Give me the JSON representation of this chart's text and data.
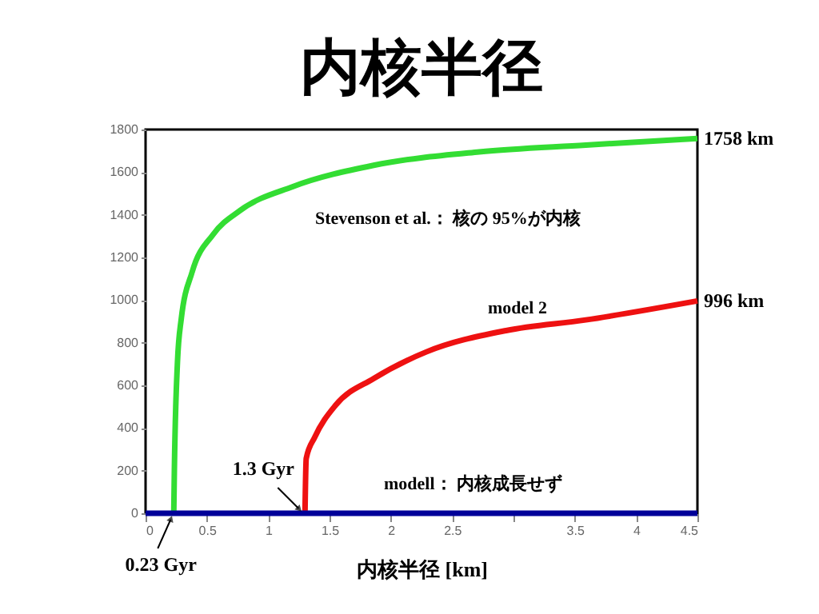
{
  "chart_data": {
    "type": "line",
    "title": "内核半径",
    "xlabel": "内核半径 [km]",
    "xlim": [
      0,
      4.5
    ],
    "ylim": [
      0,
      1800
    ],
    "xticks": [
      0,
      0.5,
      1,
      1.5,
      2,
      2.5,
      {
        "value": 3,
        "label": null
      },
      3.5,
      4,
      4.5
    ],
    "yticks": [
      0,
      200,
      400,
      600,
      800,
      1000,
      1200,
      1400,
      1600,
      1800
    ],
    "grid": false,
    "marker": "none",
    "line_style": "solid",
    "series": [
      {
        "color": "#33dd33",
        "x": [
          0.23,
          0.235,
          0.26,
          0.29,
          0.38,
          0.55,
          0.77,
          1.2,
          1.86,
          2.72,
          3.59,
          4.5
        ],
        "values": [
          0,
          207,
          707,
          907,
          1132,
          1307,
          1420,
          1532,
          1632,
          1695,
          1727,
          1758
        ]
      },
      {
        "color": "#ee1111",
        "x": [
          1.3,
          1.31,
          1.38,
          1.55,
          1.86,
          2.29,
          2.94,
          3.59,
          4.5
        ],
        "values": [
          0,
          257,
          357,
          507,
          632,
          757,
          857,
          907,
          996
        ]
      },
      {
        "color": "#000099",
        "x": [
          0,
          4.5
        ],
        "values": [
          0,
          0
        ]
      }
    ],
    "annotations": [
      {
        "text": "1758 km",
        "x": 4.5,
        "y": 1758
      },
      {
        "text": "996 km",
        "x": 4.5,
        "y": 996
      },
      "Stevenson et al.： 核の 95%が内核",
      "model 2",
      "modell： 内核成長せず",
      {
        "text": "1.3 Gyr",
        "x": 1.3,
        "y": 0
      },
      {
        "text": "0.23 Gyr",
        "x": 0.23,
        "y": 0
      }
    ]
  }
}
